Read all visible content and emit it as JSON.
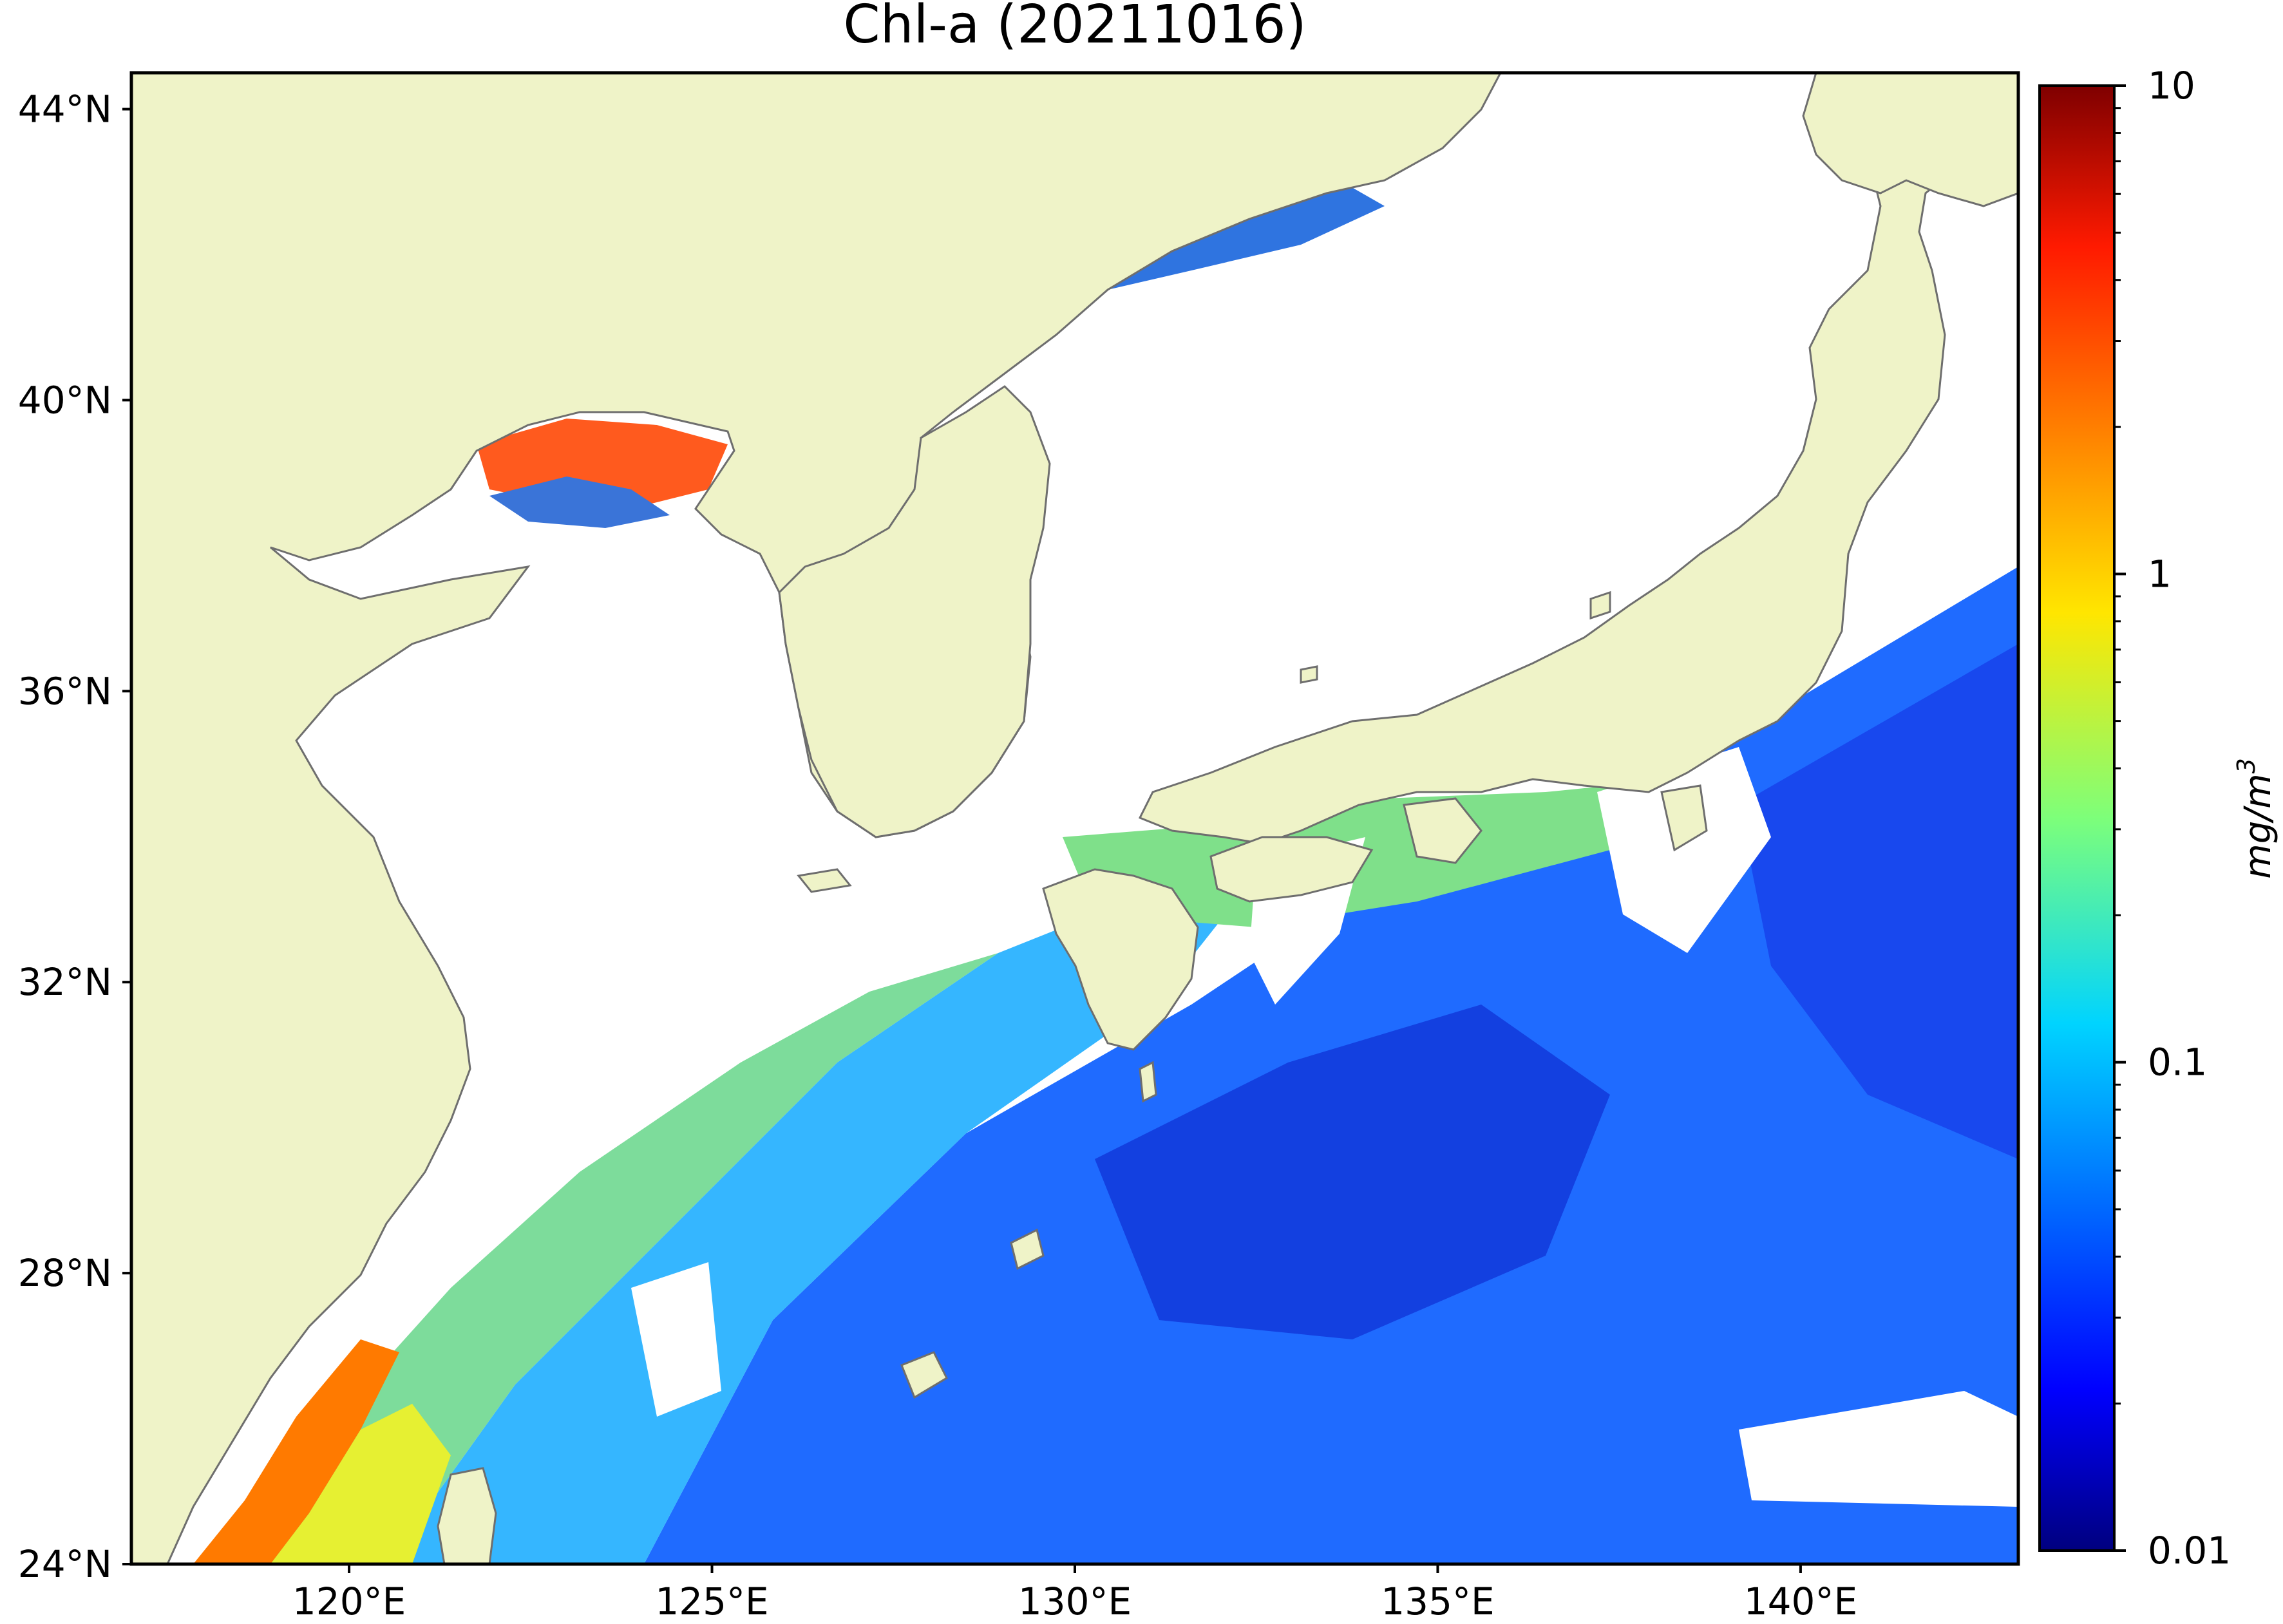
{
  "title": "Chl-a (20211016)",
  "map": {
    "lon_range": [
      117,
      143
    ],
    "lat_range": [
      24,
      44.5
    ],
    "lat_ticks": [
      {
        "value": 44,
        "label": "44°N"
      },
      {
        "value": 40,
        "label": "40°N"
      },
      {
        "value": 36,
        "label": "36°N"
      },
      {
        "value": 32,
        "label": "32°N"
      },
      {
        "value": 28,
        "label": "28°N"
      },
      {
        "value": 24,
        "label": "24°N"
      }
    ],
    "lon_ticks": [
      {
        "value": 120,
        "label": "120°E"
      },
      {
        "value": 125,
        "label": "125°E"
      },
      {
        "value": 130,
        "label": "130°E"
      },
      {
        "value": 135,
        "label": "135°E"
      },
      {
        "value": 140,
        "label": "140°E"
      }
    ],
    "colors": {
      "land": "#eff3c8",
      "coast": "#6e6e6e",
      "no_data": "#ffffff"
    }
  },
  "colorbar": {
    "scale": "log",
    "range": [
      0.01,
      10
    ],
    "ticks": [
      {
        "value": 10,
        "label": "10"
      },
      {
        "value": 1,
        "label": "1"
      },
      {
        "value": 0.1,
        "label": "0.1"
      },
      {
        "value": 0.01,
        "label": "0.01"
      }
    ],
    "unit_label": "mg/m",
    "unit_exponent": "3",
    "colormap": "jet"
  }
}
